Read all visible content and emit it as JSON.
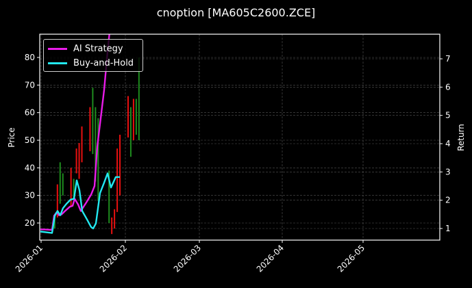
{
  "title": "cnoption [MA605C2600.ZCE]",
  "legend": [
    {
      "label": "AI Strategy",
      "color": "#e81ce8"
    },
    {
      "label": "Buy-and-Hold",
      "color": "#22e8f0"
    }
  ],
  "colors": {
    "background": "#000000",
    "up_candle": "#1e8c1e",
    "down_candle": "#e81010",
    "grid": "#555555",
    "frame": "#ffffff"
  },
  "chart_data": {
    "type": "candlestick+line",
    "title": "cnoption [MA605C2600.ZCE]",
    "xlabel": "",
    "ylabel_left": "Price",
    "ylabel_right": "Return",
    "x_ticks": [
      "2026-01",
      "2026-02",
      "2026-03",
      "2026-04",
      "2026-05"
    ],
    "y_left_ticks": [
      20,
      30,
      40,
      50,
      60,
      70,
      80
    ],
    "y_right_ticks": [
      1,
      2,
      3,
      4,
      5,
      6,
      7
    ],
    "ylim_left": [
      14,
      88
    ],
    "ylim_right": [
      0.6,
      7.9
    ],
    "xlim": [
      "2026-01-01",
      "2026-05-31"
    ],
    "grid": true,
    "legend_position": "upper left",
    "candles": [
      {
        "date": "2026-01-06",
        "low": 18,
        "high": 23,
        "dir": "up"
      },
      {
        "date": "2026-01-07",
        "low": 22,
        "high": 34,
        "dir": "down"
      },
      {
        "date": "2026-01-08",
        "low": 27,
        "high": 42,
        "dir": "up"
      },
      {
        "date": "2026-01-09",
        "low": 30,
        "high": 38,
        "dir": "up"
      },
      {
        "date": "2026-01-12",
        "low": 26,
        "high": 40,
        "dir": "down"
      },
      {
        "date": "2026-01-13",
        "low": 29,
        "high": 36,
        "dir": "up"
      },
      {
        "date": "2026-01-14",
        "low": 38,
        "high": 47,
        "dir": "down"
      },
      {
        "date": "2026-01-15",
        "low": 36,
        "high": 49,
        "dir": "down"
      },
      {
        "date": "2026-01-16",
        "low": 42,
        "high": 55,
        "dir": "down"
      },
      {
        "date": "2026-01-19",
        "low": 46,
        "high": 62,
        "dir": "down"
      },
      {
        "date": "2026-01-20",
        "low": 45,
        "high": 69,
        "dir": "up"
      },
      {
        "date": "2026-01-21",
        "low": 35,
        "high": 62,
        "dir": "up"
      },
      {
        "date": "2026-01-22",
        "low": 28,
        "high": 58,
        "dir": "up"
      },
      {
        "date": "2026-01-26",
        "low": 20,
        "high": 39,
        "dir": "up"
      },
      {
        "date": "2026-01-27",
        "low": 16,
        "high": 22,
        "dir": "down"
      },
      {
        "date": "2026-01-28",
        "low": 18,
        "high": 25,
        "dir": "down"
      },
      {
        "date": "2026-01-29",
        "low": 24,
        "high": 47,
        "dir": "down"
      },
      {
        "date": "2026-01-30",
        "low": 30,
        "high": 52,
        "dir": "down"
      },
      {
        "date": "2026-02-02",
        "low": 51,
        "high": 66,
        "dir": "down"
      },
      {
        "date": "2026-02-03",
        "low": 44,
        "high": 62,
        "dir": "up"
      },
      {
        "date": "2026-02-04",
        "low": 50,
        "high": 65,
        "dir": "down"
      },
      {
        "date": "2026-02-05",
        "low": 52,
        "high": 65,
        "dir": "up"
      },
      {
        "date": "2026-02-06",
        "low": 50,
        "high": 80,
        "dir": "up"
      }
    ],
    "series": [
      {
        "name": "AI Strategy",
        "axis": "right",
        "color": "#e81ce8",
        "points": [
          {
            "x": 59,
            "y": 0.97
          },
          {
            "x": 76,
            "y": 0.95
          },
          {
            "x": 79,
            "y": 1.45
          },
          {
            "x": 83,
            "y": 1.58
          },
          {
            "x": 86,
            "y": 1.47
          },
          {
            "x": 90,
            "y": 1.5
          },
          {
            "x": 95,
            "y": 1.62
          },
          {
            "x": 102,
            "y": 1.77
          },
          {
            "x": 106,
            "y": 1.8
          },
          {
            "x": 109,
            "y": 2.05
          },
          {
            "x": 114,
            "y": 1.85
          },
          {
            "x": 118,
            "y": 1.62
          },
          {
            "x": 126,
            "y": 1.92
          },
          {
            "x": 133,
            "y": 2.2
          },
          {
            "x": 138,
            "y": 2.5
          },
          {
            "x": 142,
            "y": 3.9
          },
          {
            "x": 147,
            "y": 4.9
          },
          {
            "x": 152,
            "y": 5.9
          },
          {
            "x": 157,
            "y": 7.25
          },
          {
            "x": 160,
            "y": 7.95
          }
        ]
      },
      {
        "name": "Buy-and-Hold",
        "axis": "right",
        "color": "#22e8f0",
        "points": [
          {
            "x": 59,
            "y": 0.89
          },
          {
            "x": 76,
            "y": 0.84
          },
          {
            "x": 80,
            "y": 1.45
          },
          {
            "x": 84,
            "y": 1.62
          },
          {
            "x": 88,
            "y": 1.47
          },
          {
            "x": 92,
            "y": 1.72
          },
          {
            "x": 97,
            "y": 1.87
          },
          {
            "x": 103,
            "y": 2.02
          },
          {
            "x": 108,
            "y": 2.05
          },
          {
            "x": 112,
            "y": 2.7
          },
          {
            "x": 116,
            "y": 2.35
          },
          {
            "x": 120,
            "y": 1.62
          },
          {
            "x": 127,
            "y": 1.32
          },
          {
            "x": 133,
            "y": 1.05
          },
          {
            "x": 136,
            "y": 1.0
          },
          {
            "x": 140,
            "y": 1.18
          },
          {
            "x": 146,
            "y": 2.25
          },
          {
            "x": 152,
            "y": 2.62
          },
          {
            "x": 157,
            "y": 2.95
          },
          {
            "x": 162,
            "y": 2.45
          },
          {
            "x": 169,
            "y": 2.82
          },
          {
            "x": 175,
            "y": 2.82
          }
        ]
      }
    ]
  }
}
